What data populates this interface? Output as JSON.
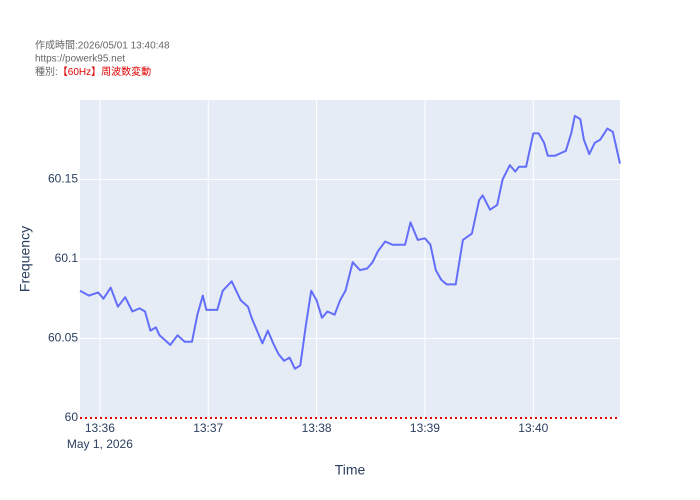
{
  "header": {
    "created": "作成時間:2026/05/01 13:40:48",
    "url": "https://powerk95.net",
    "kind_label": "種別:",
    "kind": "【60Hz】周波数変動"
  },
  "chart_data": {
    "type": "line",
    "x_label": "Time",
    "y_label": "Frequency",
    "x_sublabel": "May 1, 2026",
    "xlim": [
      "13:35:49",
      "13:40:48"
    ],
    "xticks": [
      "13:36",
      "13:37",
      "13:38",
      "13:39",
      "13:40"
    ],
    "ylim": [
      60,
      60.2
    ],
    "yticks": [
      60,
      60.05,
      60.1,
      60.15
    ],
    "grid": true,
    "hline": {
      "value": 60,
      "color": "#dd0000"
    },
    "series": [
      {
        "name": "Frequency",
        "color": "#636efa",
        "x": [
          "13:35:49",
          "13:35:54",
          "13:35:59",
          "13:36:02",
          "13:36:06",
          "13:36:10",
          "13:36:14",
          "13:36:18",
          "13:36:22",
          "13:36:25",
          "13:36:28",
          "13:36:31",
          "13:36:33",
          "13:36:39",
          "13:36:43",
          "13:36:47",
          "13:36:51",
          "13:36:54",
          "13:36:57",
          "13:36:59",
          "13:37:03",
          "13:37:05",
          "13:37:08",
          "13:37:13",
          "13:37:18",
          "13:37:22",
          "13:37:24",
          "13:37:27",
          "13:37:30",
          "13:37:33",
          "13:37:36",
          "13:37:39",
          "13:37:42",
          "13:37:45",
          "13:37:48",
          "13:37:51",
          "13:37:54",
          "13:37:57",
          "13:38:00",
          "13:38:03",
          "13:38:06",
          "13:38:10",
          "13:38:13",
          "13:38:16",
          "13:38:20",
          "13:38:24",
          "13:38:28",
          "13:38:31",
          "13:38:34",
          "13:38:38",
          "13:38:42",
          "13:38:46",
          "13:38:49",
          "13:38:52",
          "13:38:56",
          "13:39:00",
          "13:39:03",
          "13:39:06",
          "13:39:09",
          "13:39:12",
          "13:39:17",
          "13:39:21",
          "13:39:26",
          "13:39:30",
          "13:39:32",
          "13:39:36",
          "13:39:40",
          "13:39:43",
          "13:39:47",
          "13:39:50",
          "13:39:52",
          "13:39:56",
          "13:40:00",
          "13:40:03",
          "13:40:06",
          "13:40:08",
          "13:40:12",
          "13:40:16",
          "13:40:18",
          "13:40:21",
          "13:40:23",
          "13:40:26",
          "13:40:28",
          "13:40:31",
          "13:40:34",
          "13:40:37",
          "13:40:41",
          "13:40:44",
          "13:40:48"
        ],
        "values": [
          60.08,
          60.077,
          60.079,
          60.075,
          60.082,
          60.07,
          60.076,
          60.067,
          60.069,
          60.067,
          60.055,
          60.057,
          60.052,
          60.046,
          60.052,
          60.048,
          60.048,
          60.065,
          60.077,
          60.068,
          60.068,
          60.068,
          60.08,
          60.086,
          60.074,
          60.07,
          60.063,
          60.055,
          60.047,
          60.055,
          60.047,
          60.04,
          60.036,
          60.038,
          60.031,
          60.033,
          60.058,
          60.08,
          60.074,
          60.063,
          60.067,
          60.065,
          60.074,
          60.08,
          60.098,
          60.093,
          60.094,
          60.098,
          60.105,
          60.111,
          60.109,
          60.109,
          60.109,
          60.123,
          60.112,
          60.113,
          60.109,
          60.093,
          60.087,
          60.084,
          60.084,
          60.112,
          60.116,
          60.137,
          60.14,
          60.131,
          60.134,
          60.15,
          60.159,
          60.155,
          60.158,
          60.158,
          60.179,
          60.179,
          60.173,
          60.165,
          60.165,
          60.167,
          60.168,
          60.179,
          60.19,
          60.188,
          60.175,
          60.166,
          60.173,
          60.175,
          60.182,
          60.18,
          60.16
        ]
      }
    ]
  }
}
